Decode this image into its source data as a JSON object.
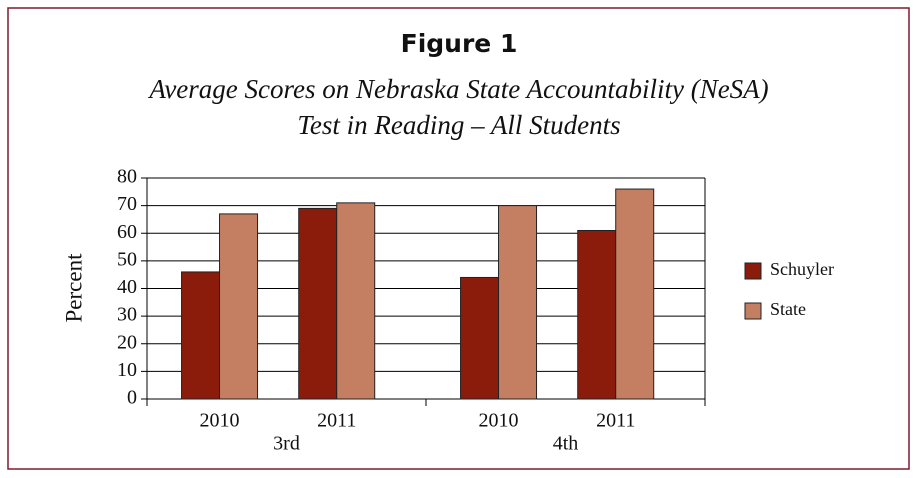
{
  "chart_data": {
    "type": "bar",
    "title": "Figure 1",
    "subtitle": [
      "Average Scores on Nebraska State Accountability (NeSA)",
      "Test in Reading – All Students"
    ],
    "y_label": "Percent",
    "categories": [
      "2010",
      "2011",
      "2010",
      "2011"
    ],
    "group_labels": [
      "3rd",
      "4th"
    ],
    "series": [
      {
        "name": "Schuyler",
        "color": "#8b1c0c",
        "values": [
          46,
          69,
          44,
          61
        ]
      },
      {
        "name": "State",
        "color": "#c47f63",
        "values": [
          67,
          71,
          70,
          76
        ]
      }
    ],
    "ylim": [
      0,
      80
    ],
    "yticks": [
      0,
      10,
      20,
      30,
      40,
      50,
      60,
      70,
      80
    ],
    "grid": true,
    "legend": "right"
  }
}
